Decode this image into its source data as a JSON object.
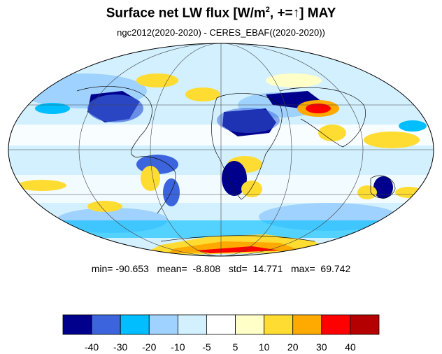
{
  "title": {
    "main": "Surface net LW flux [W/m",
    "sup": "2",
    "after_sup": ", +=",
    "arrow": "↑",
    "end": "]  MAY"
  },
  "subtitle": "ngc2012(2020-2020) - CERES_EBAF((2020-2020))",
  "stats": {
    "min_label": "min=",
    "min": "-90.653",
    "mean_label": "mean=",
    "mean": "-8.808",
    "std_label": "std=",
    "std": "14.771",
    "max_label": "max=",
    "max": "69.742"
  },
  "colorbar": {
    "levels": [
      "-40",
      "-30",
      "-20",
      "-10",
      "-5",
      "5",
      "10",
      "20",
      "30",
      "40"
    ],
    "colors": [
      "#00008c",
      "#3c64dc",
      "#00beff",
      "#a0d2ff",
      "#d2f0ff",
      "#ffffff",
      "#ffffc8",
      "#ffdc32",
      "#ffaa00",
      "#ff0000",
      "#b40000"
    ]
  },
  "map": {
    "projection": "mollweide",
    "ocean_background": "#d2f0ff"
  }
}
